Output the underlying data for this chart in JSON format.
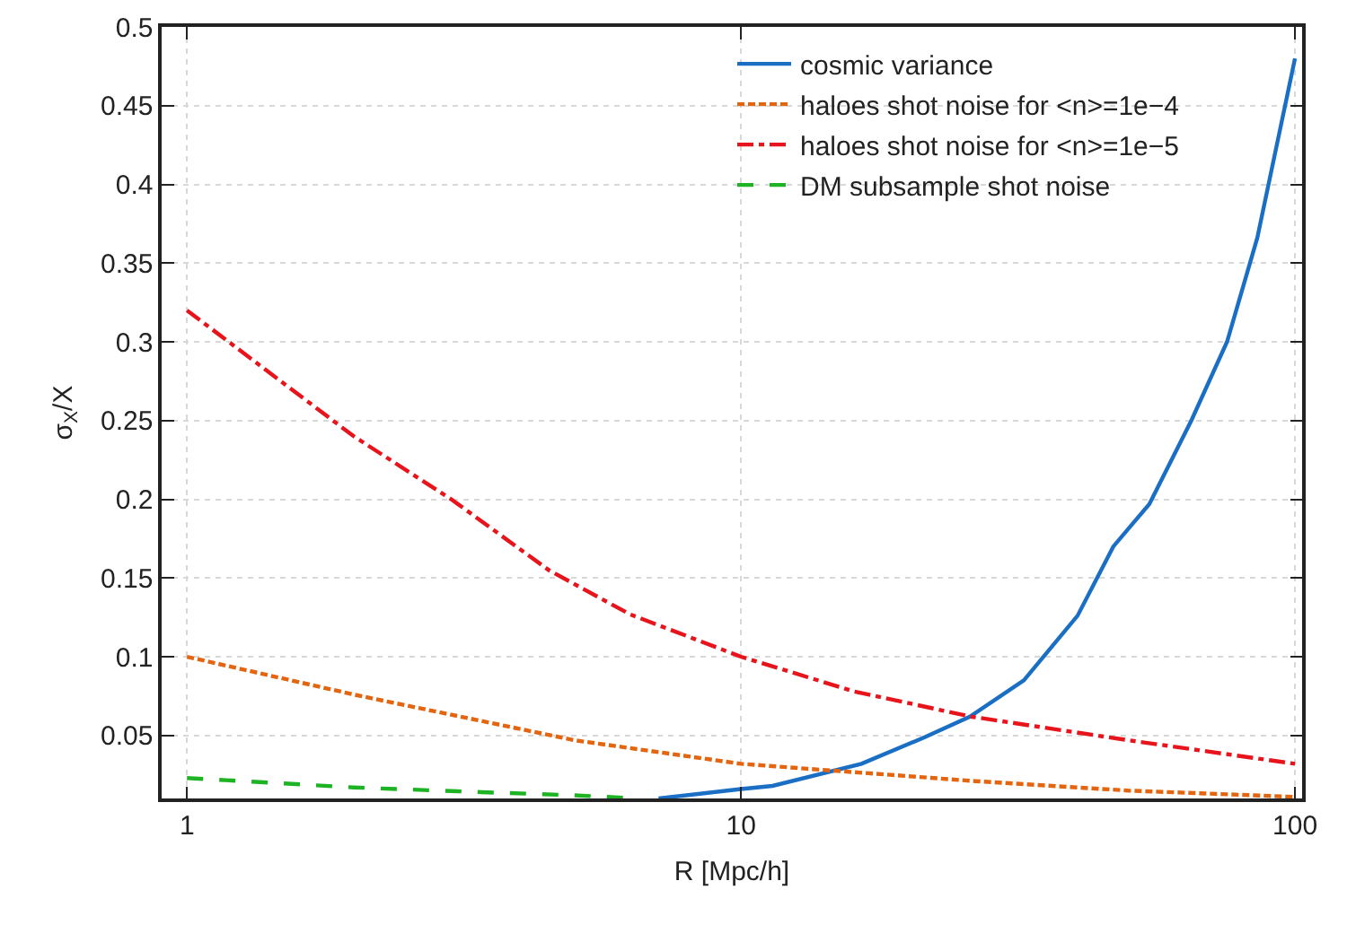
{
  "chart_data": {
    "type": "line",
    "xlabel": "R [Mpc/h]",
    "ylabel": "σ$_{X}$/X",
    "log": "x",
    "xlim": [
      0.9,
      103
    ],
    "xticks": [
      1,
      10,
      100
    ],
    "ylim": [
      0.01,
      0.5
    ],
    "yticks": [
      0.05,
      0.1,
      0.15,
      0.2,
      0.25,
      0.3,
      0.35,
      0.4,
      0.45,
      0.5
    ],
    "grid": true,
    "legend": "top right",
    "marker": "none",
    "series": [
      {
        "name": "cosmic variance",
        "color": "#1a6fc4",
        "line_style": "solid",
        "x": [
          7.1,
          10,
          11.4,
          16.5,
          21.5,
          25.9,
          32.4,
          40.5,
          47,
          54.6,
          65,
          75.4,
          85.5,
          100
        ],
        "values": [
          0.01,
          0.016,
          0.018,
          0.032,
          0.049,
          0.062,
          0.085,
          0.126,
          0.17,
          0.197,
          0.25,
          0.3,
          0.366,
          0.48
        ]
      },
      {
        "name": "haloes shot noise for <n>=1e−4",
        "color": "#e3650f",
        "line_style": "dotted",
        "x": [
          1,
          2,
          5,
          10,
          26.5,
          50,
          100
        ],
        "values": [
          0.1,
          0.076,
          0.047,
          0.032,
          0.021,
          0.015,
          0.011
        ]
      },
      {
        "name": "haloes shot noise for <n>=1e−5",
        "color": "#e8141c",
        "line_style": "dashdot",
        "x": [
          1,
          2,
          3,
          4.5,
          6.3,
          10,
          16,
          26,
          50,
          100
        ],
        "values": [
          0.32,
          0.24,
          0.2,
          0.155,
          0.127,
          0.1,
          0.078,
          0.062,
          0.047,
          0.032
        ]
      },
      {
        "name": "DM subsample shot noise",
        "color": "#1db324",
        "line_style": "dashed",
        "x": [
          1,
          2,
          3.4,
          5,
          6.5
        ],
        "values": [
          0.023,
          0.017,
          0.014,
          0.012,
          0.01
        ]
      }
    ]
  }
}
